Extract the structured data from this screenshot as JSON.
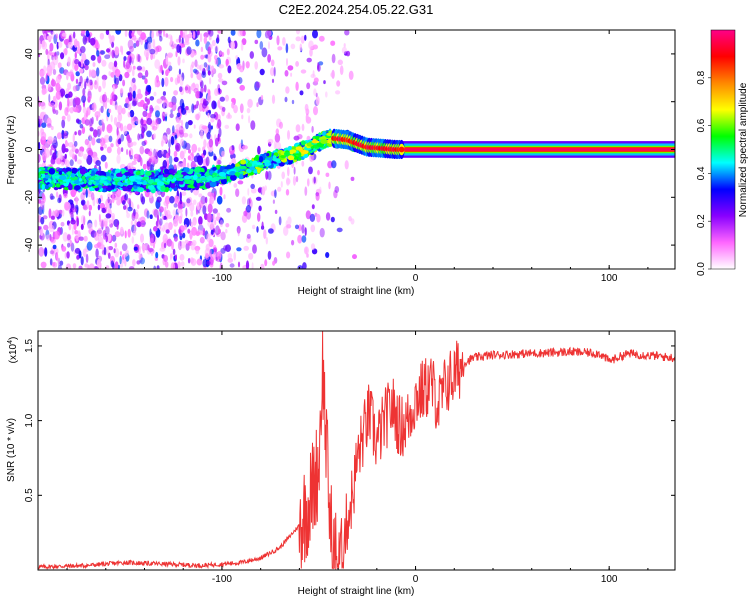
{
  "figure": {
    "title": "C2E2.2024.254.05.22.G31"
  },
  "chart_data": [
    {
      "type": "heatmap",
      "name": "spectrogram",
      "title": "C2E2.2024.254.05.22.G31",
      "xlabel": "Height of straight line (km)",
      "ylabel": "Frequency (Hz)",
      "xlim": [
        -195,
        134
      ],
      "ylim": [
        -50,
        50
      ],
      "xticks": [
        -100,
        0,
        100
      ],
      "yticks": [
        -40,
        -20,
        0,
        20,
        40
      ],
      "colorbar": {
        "label": "Normalized spectral amplitude",
        "range": [
          0,
          1
        ],
        "ticks": [
          0.0,
          0.2,
          0.4,
          0.6,
          0.8
        ],
        "colormap": [
          "#ffffff",
          "#ff66ff",
          "#8800ff",
          "#0000ff",
          "#00ffff",
          "#00ff00",
          "#ffff00",
          "#ff8800",
          "#ff0000",
          "#ff0088"
        ]
      },
      "ridge": {
        "x": [
          -185,
          -160,
          -130,
          -100,
          -80,
          -60,
          -45,
          -35,
          -25,
          -10,
          0,
          50,
          100,
          134
        ],
        "frequency_hz": [
          -12,
          -13,
          -13,
          -11,
          -6,
          -1,
          5,
          4,
          1,
          0,
          0,
          0,
          0,
          0
        ]
      }
    },
    {
      "type": "line",
      "name": "snr",
      "xlabel": "Height of straight line (km)",
      "ylabel": "SNR (10 * v/v)",
      "scale_label": "(x10",
      "scale_exponent": "4",
      "xlim": [
        -195,
        134
      ],
      "ylim": [
        0,
        1.6
      ],
      "xticks": [
        -100,
        0,
        100
      ],
      "yticks": [
        0.5,
        1.0,
        1.5
      ],
      "line_color": "#ee3333",
      "series": [
        {
          "name": "SNR",
          "x": [
            -195,
            -170,
            -150,
            -130,
            -110,
            -90,
            -80,
            -70,
            -60,
            -55,
            -50,
            -48,
            -46,
            -44,
            -42,
            -40,
            -38,
            -35,
            -32,
            -30,
            -27,
            -24,
            -20,
            -16,
            -12,
            -8,
            -4,
            0,
            4,
            8,
            12,
            16,
            20,
            24,
            30,
            40,
            60,
            80,
            95,
            100,
            110,
            134
          ],
          "y": [
            0.02,
            0.03,
            0.05,
            0.04,
            0.03,
            0.05,
            0.08,
            0.15,
            0.3,
            0.45,
            0.7,
            1.4,
            0.8,
            0.3,
            0.1,
            0.05,
            0.15,
            0.35,
            0.55,
            0.75,
            0.9,
            1.05,
            0.85,
            1.0,
            1.1,
            0.95,
            1.0,
            1.15,
            1.2,
            1.25,
            1.1,
            1.25,
            1.3,
            1.38,
            1.42,
            1.44,
            1.45,
            1.46,
            1.45,
            1.4,
            1.45,
            1.42
          ]
        }
      ]
    }
  ]
}
